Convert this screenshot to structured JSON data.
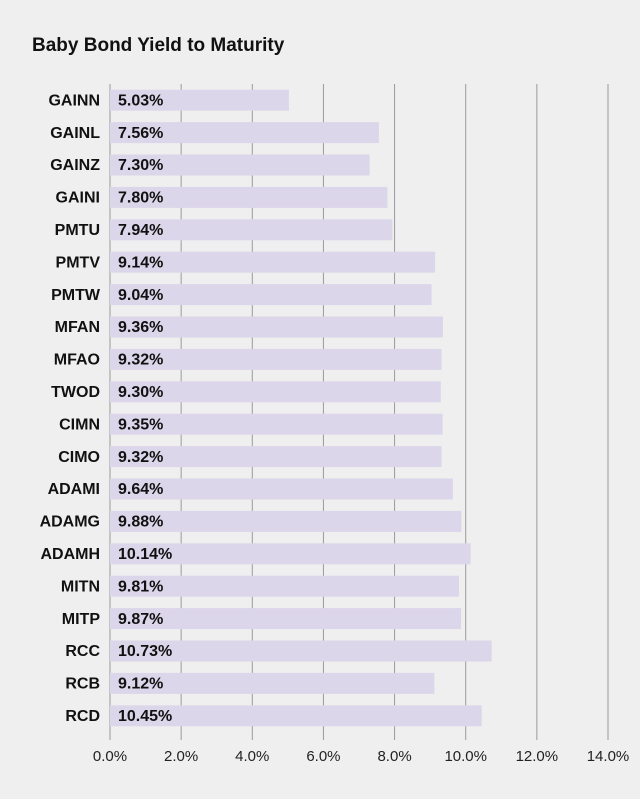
{
  "chart_data": {
    "type": "bar",
    "orientation": "horizontal",
    "title": "Baby Bond Yield to Maturity",
    "categories": [
      "GAINN",
      "GAINL",
      "GAINZ",
      "GAINI",
      "PMTU",
      "PMTV",
      "PMTW",
      "MFAN",
      "MFAO",
      "TWOD",
      "CIMN",
      "CIMO",
      "ADAMI",
      "ADAMG",
      "ADAMH",
      "MITN",
      "MITP",
      "RCC",
      "RCB",
      "RCD"
    ],
    "values": [
      5.03,
      7.56,
      7.3,
      7.8,
      7.94,
      9.14,
      9.04,
      9.36,
      9.32,
      9.3,
      9.35,
      9.32,
      9.64,
      9.88,
      10.14,
      9.81,
      9.87,
      10.73,
      9.12,
      10.45
    ],
    "value_labels": [
      "5.03%",
      "7.56%",
      "7.30%",
      "7.80%",
      "7.94%",
      "9.14%",
      "9.04%",
      "9.36%",
      "9.32%",
      "9.30%",
      "9.35%",
      "9.32%",
      "9.64%",
      "9.88%",
      "10.14%",
      "9.81%",
      "9.87%",
      "10.73%",
      "9.12%",
      "10.45%"
    ],
    "color": "#dcd6ea",
    "xlim": [
      0,
      14
    ],
    "xticks": [
      {
        "value": 0,
        "label": "0.0%"
      },
      {
        "value": 2,
        "label": "2.0%"
      },
      {
        "value": 4,
        "label": "4.0%"
      },
      {
        "value": 6,
        "label": "6.0%"
      },
      {
        "value": 8,
        "label": "8.0%"
      },
      {
        "value": 10,
        "label": "10.0%"
      },
      {
        "value": 12,
        "label": "12.0%"
      },
      {
        "value": 14,
        "label": "14.0%"
      }
    ],
    "grid": true
  }
}
